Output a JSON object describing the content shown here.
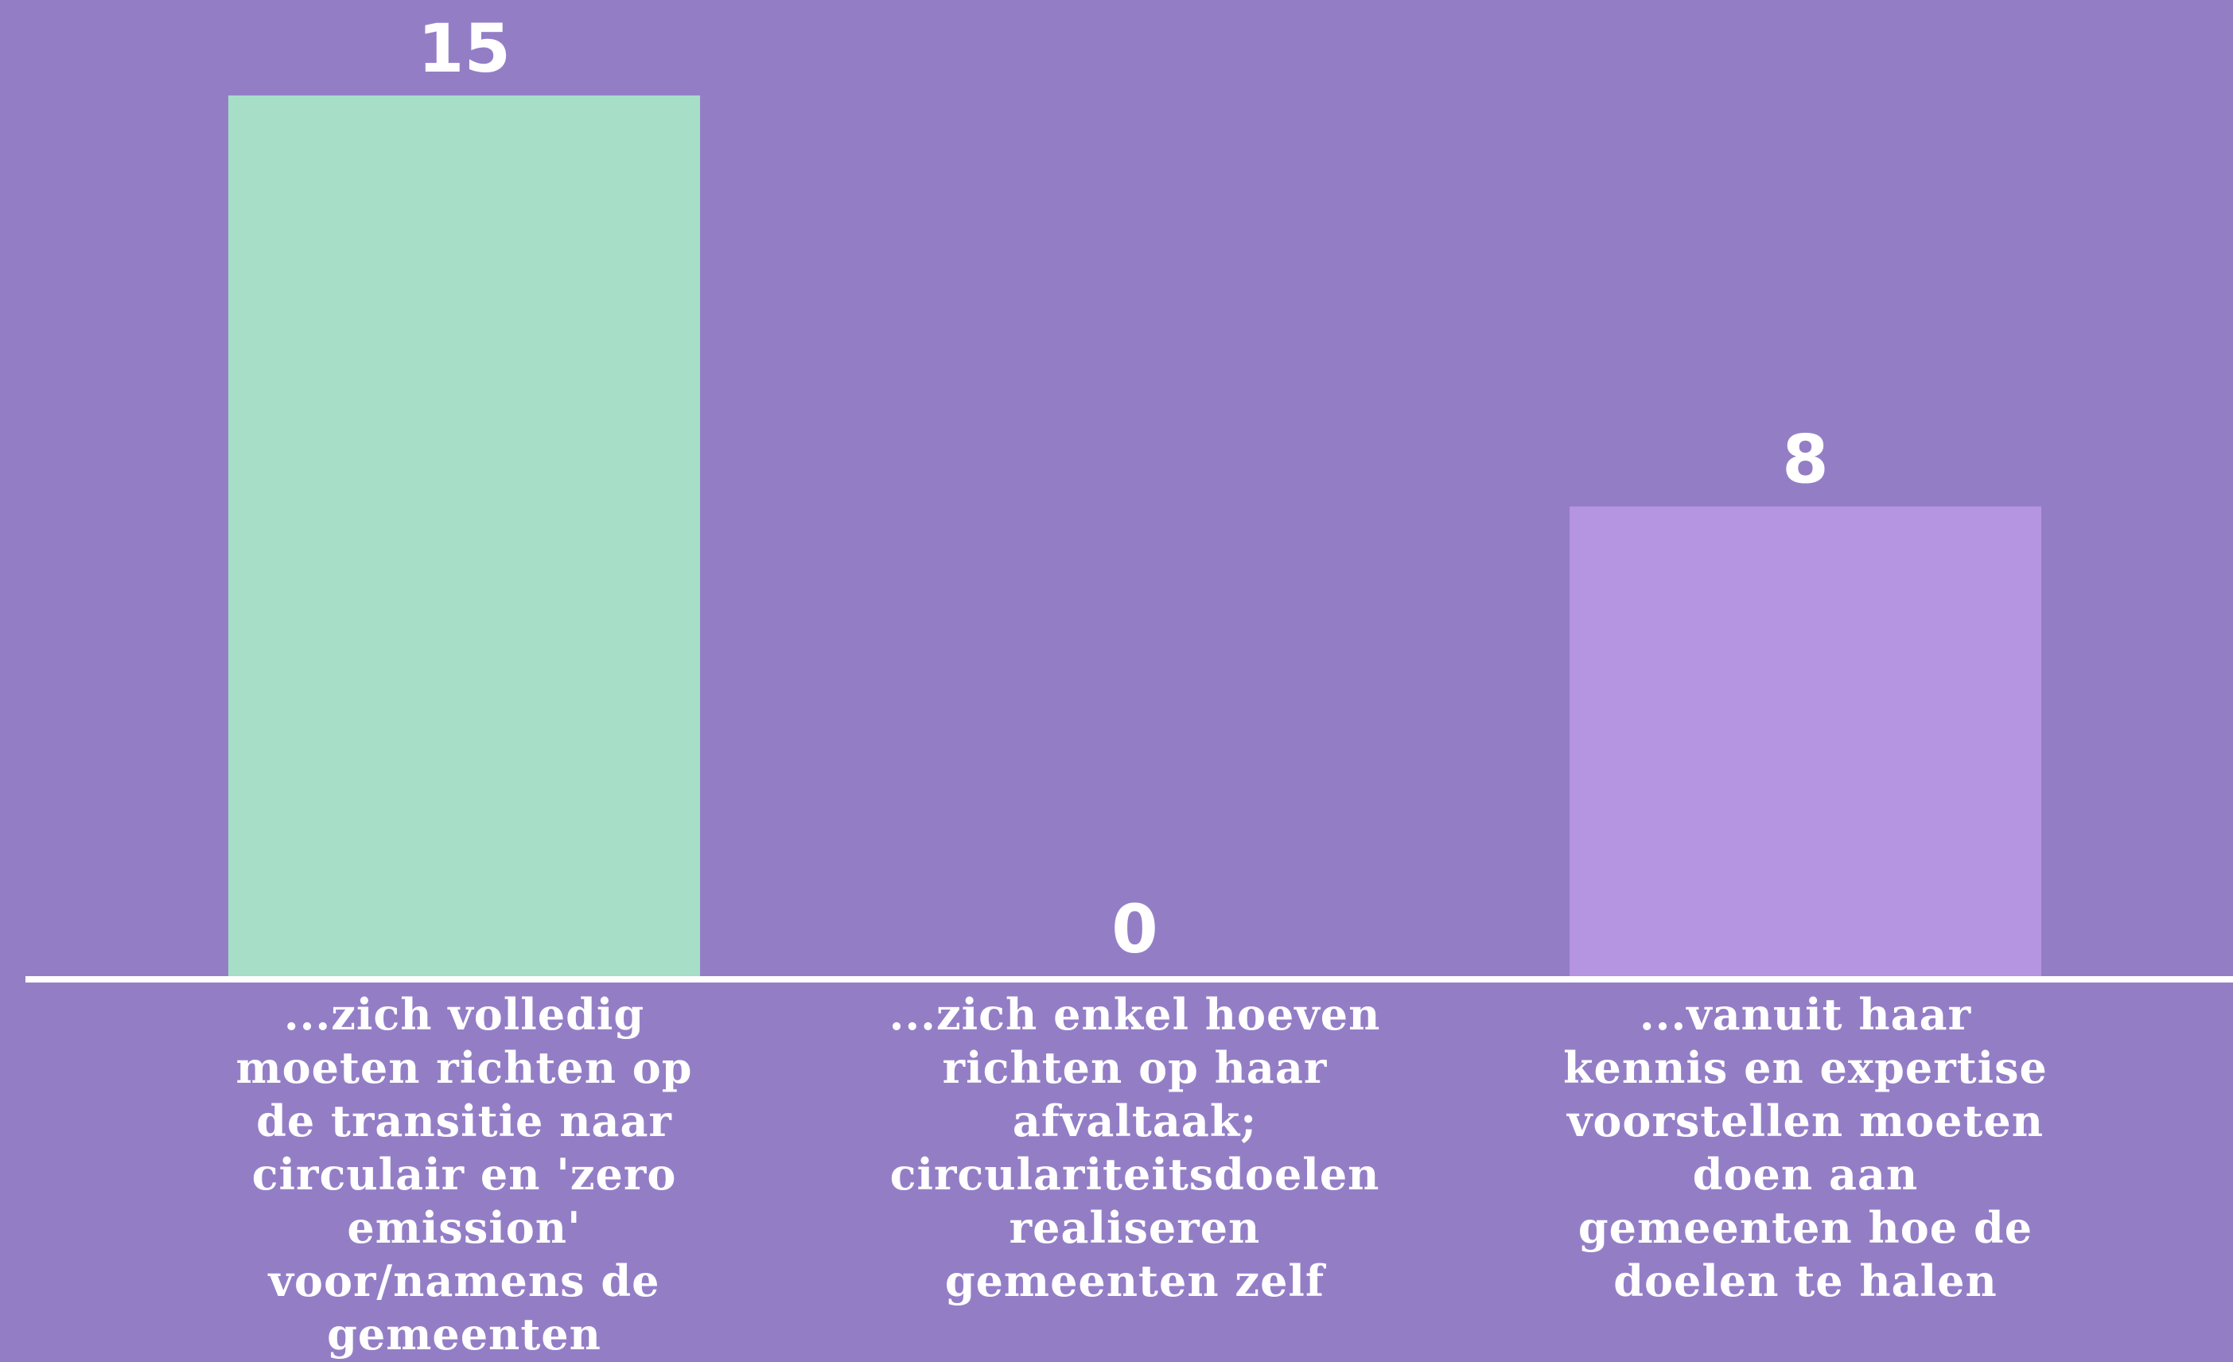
{
  "chart_data": {
    "type": "bar",
    "categories": [
      "...zich volledig moeten richten op de transitie naar circulair en 'zero emission' voor/namens de gemeenten",
      "...zich enkel hoeven richten op haar afvaltaak; circulariteitsdoelen realiseren gemeenten zelf",
      "...vanuit haar kennis en expertise voorstellen moeten doen aan gemeenten hoe de doelen te halen"
    ],
    "values": [
      15,
      0,
      8
    ],
    "colors": [
      "#a6dec8",
      "#b594e2",
      "#b594e2"
    ]
  }
}
